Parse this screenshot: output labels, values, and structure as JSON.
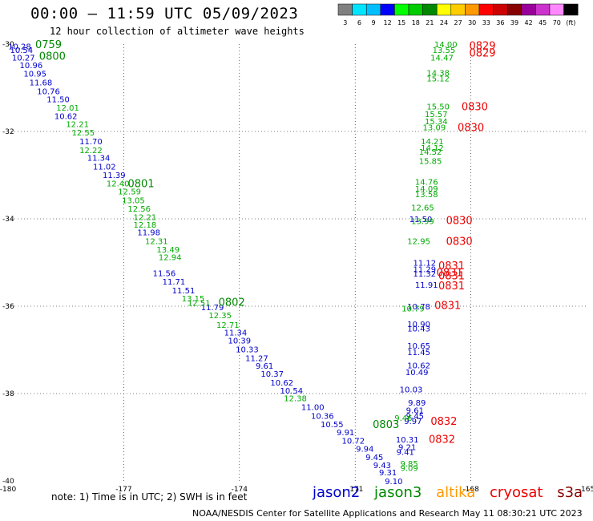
{
  "header": {
    "title": "00:00 – 11:59 UTC 05/09/2023",
    "subtitle": "12 hour collection of altimeter wave heights"
  },
  "color_scale": {
    "labels": [
      "3",
      "6",
      "9",
      "12",
      "15",
      "18",
      "21",
      "24",
      "27",
      "30",
      "33",
      "36",
      "39",
      "42",
      "45",
      "70",
      "(ft)"
    ],
    "colors": [
      "#808080",
      "#00e5ff",
      "#00bfff",
      "#0000ff",
      "#00ff00",
      "#00cc00",
      "#008800",
      "#ffff00",
      "#ffcc00",
      "#ff9900",
      "#ff0000",
      "#cc0000",
      "#880000",
      "#990099",
      "#cc33cc",
      "#ff88ff",
      "#000000"
    ]
  },
  "footer": {
    "note": "note: 1) Time is in UTC; 2) SWH is in feet",
    "credit": "NOAA/NESDIS Center for Satellite Applications and Research    May 11 08:30:21 UTC 2023"
  },
  "satellites": [
    {
      "name": "jason2",
      "color": "#0000cc"
    },
    {
      "name": "jason3",
      "color": "#008800"
    },
    {
      "name": "altika",
      "color": "#ff9900"
    },
    {
      "name": "cryosat",
      "color": "#ee0000"
    },
    {
      "name": "s3a",
      "color": "#880000"
    }
  ],
  "chart_data": {
    "type": "scatter",
    "title": "12 hour collection of altimeter wave heights",
    "xlim": [
      -180,
      -165
    ],
    "ylim": [
      -40,
      -30
    ],
    "x_ticks": [
      "-180",
      "-177",
      "-174",
      "-171",
      "-168",
      "-165"
    ],
    "y_ticks": [
      "-30",
      "-32",
      "-34",
      "-36",
      "-38",
      "-40"
    ],
    "grid": true,
    "series": [
      {
        "name": "jason2",
        "color": "#0000cc",
        "points": [
          {
            "x": -179.7,
            "y": -30.05,
            "label": "10.28"
          },
          {
            "x": -179.65,
            "y": -30.13,
            "label": "10.54"
          },
          {
            "x": -179.6,
            "y": -30.3,
            "label": "10.27"
          },
          {
            "x": -179.4,
            "y": -30.48,
            "label": "10.96"
          },
          {
            "x": -179.3,
            "y": -30.67,
            "label": "10.95"
          },
          {
            "x": -179.15,
            "y": -30.87,
            "label": "11.68"
          },
          {
            "x": -178.95,
            "y": -31.07,
            "label": "10.76"
          },
          {
            "x": -178.7,
            "y": -31.26,
            "label": "11.50"
          },
          {
            "x": -178.5,
            "y": -31.64,
            "label": "10.62"
          },
          {
            "x": -177.85,
            "y": -32.22,
            "label": "11.70"
          },
          {
            "x": -177.65,
            "y": -32.6,
            "label": "11.34"
          },
          {
            "x": -177.5,
            "y": -32.8,
            "label": "11.02"
          },
          {
            "x": -177.25,
            "y": -32.99,
            "label": "11.39"
          },
          {
            "x": -176.35,
            "y": -34.3,
            "label": "11.98"
          },
          {
            "x": -175.95,
            "y": -35.24,
            "label": "11.56"
          },
          {
            "x": -175.7,
            "y": -35.43,
            "label": "11.71"
          },
          {
            "x": -175.45,
            "y": -35.63,
            "label": "11.51"
          },
          {
            "x": -174.7,
            "y": -36.02,
            "label": "11.79"
          },
          {
            "x": -174.1,
            "y": -36.6,
            "label": "11.34"
          },
          {
            "x": -174.0,
            "y": -36.78,
            "label": "10.39"
          },
          {
            "x": -173.8,
            "y": -36.98,
            "label": "10.33"
          },
          {
            "x": -173.55,
            "y": -37.18,
            "label": "11.27"
          },
          {
            "x": -173.35,
            "y": -37.36,
            "label": "9.61"
          },
          {
            "x": -173.15,
            "y": -37.54,
            "label": "10.37"
          },
          {
            "x": -172.9,
            "y": -37.74,
            "label": "10.62"
          },
          {
            "x": -172.65,
            "y": -37.93,
            "label": "10.54"
          },
          {
            "x": -172.1,
            "y": -38.3,
            "label": "11.00"
          },
          {
            "x": -171.85,
            "y": -38.5,
            "label": "10.36"
          },
          {
            "x": -171.6,
            "y": -38.7,
            "label": "10.55"
          },
          {
            "x": -171.25,
            "y": -38.88,
            "label": "9.91"
          },
          {
            "x": -171.05,
            "y": -39.07,
            "label": "10.72"
          },
          {
            "x": -170.75,
            "y": -39.26,
            "label": "9.94"
          },
          {
            "x": -170.5,
            "y": -39.45,
            "label": "9.45"
          },
          {
            "x": -170.3,
            "y": -39.63,
            "label": "9.43"
          },
          {
            "x": -170.15,
            "y": -39.8,
            "label": "9.31"
          },
          {
            "x": -170.0,
            "y": -40.0,
            "label": "9.10"
          },
          {
            "x": -169.3,
            "y": -34.0,
            "label": "11.50"
          },
          {
            "x": -169.2,
            "y": -35.0,
            "label": "11.12"
          },
          {
            "x": -169.2,
            "y": -35.15,
            "label": "11.29"
          },
          {
            "x": -169.2,
            "y": -35.25,
            "label": "11.32"
          },
          {
            "x": -169.15,
            "y": -35.5,
            "label": "11.91"
          },
          {
            "x": -169.35,
            "y": -36.0,
            "label": "10.78"
          },
          {
            "x": -169.35,
            "y": -36.4,
            "label": "10.90"
          },
          {
            "x": -169.35,
            "y": -36.5,
            "label": "10.43"
          },
          {
            "x": -169.35,
            "y": -36.9,
            "label": "10.65"
          },
          {
            "x": -169.35,
            "y": -37.05,
            "label": "11.45"
          },
          {
            "x": -169.35,
            "y": -37.35,
            "label": "10.62"
          },
          {
            "x": -169.4,
            "y": -37.5,
            "label": "10.49"
          },
          {
            "x": -169.55,
            "y": -37.9,
            "label": "10.03"
          },
          {
            "x": -169.4,
            "y": -38.2,
            "label": "9.89"
          },
          {
            "x": -169.45,
            "y": -38.38,
            "label": "9.61"
          },
          {
            "x": -169.45,
            "y": -38.5,
            "label": "9.45"
          },
          {
            "x": -169.5,
            "y": -38.62,
            "label": "9.97"
          },
          {
            "x": -169.65,
            "y": -39.05,
            "label": "10.31"
          },
          {
            "x": -169.65,
            "y": -39.22,
            "label": "9.21"
          },
          {
            "x": -169.7,
            "y": -39.33,
            "label": "9.41"
          }
        ]
      },
      {
        "name": "jason3",
        "color": "#00aa00",
        "points": [
          {
            "x": -178.45,
            "y": -31.45,
            "label": "12.01"
          },
          {
            "x": -178.2,
            "y": -31.83,
            "label": "12.21"
          },
          {
            "x": -178.05,
            "y": -32.02,
            "label": "12.55"
          },
          {
            "x": -177.85,
            "y": -32.42,
            "label": "12.22"
          },
          {
            "x": -177.15,
            "y": -33.18,
            "label": "12.40"
          },
          {
            "x": -176.85,
            "y": -33.37,
            "label": "12.59"
          },
          {
            "x": -176.75,
            "y": -33.57,
            "label": "13.05"
          },
          {
            "x": -176.6,
            "y": -33.76,
            "label": "12.56"
          },
          {
            "x": -176.45,
            "y": -33.95,
            "label": "12.21"
          },
          {
            "x": -176.45,
            "y": -34.13,
            "label": "12.18"
          },
          {
            "x": -176.15,
            "y": -34.5,
            "label": "12.31"
          },
          {
            "x": -175.85,
            "y": -34.7,
            "label": "13.49"
          },
          {
            "x": -175.8,
            "y": -34.87,
            "label": "12.94"
          },
          {
            "x": -175.2,
            "y": -35.82,
            "label": "13.15"
          },
          {
            "x": -175.05,
            "y": -35.92,
            "label": "12.51"
          },
          {
            "x": -174.5,
            "y": -36.2,
            "label": "12.35"
          },
          {
            "x": -174.3,
            "y": -36.42,
            "label": "12.71"
          },
          {
            "x": -172.55,
            "y": -38.1,
            "label": "12.38"
          },
          {
            "x": -168.65,
            "y": -30.0,
            "label": "14.00"
          },
          {
            "x": -168.7,
            "y": -30.13,
            "label": "13.55"
          },
          {
            "x": -168.75,
            "y": -30.3,
            "label": "14.47"
          },
          {
            "x": -168.85,
            "y": -30.65,
            "label": "14.38"
          },
          {
            "x": -168.85,
            "y": -30.78,
            "label": "15.12"
          },
          {
            "x": -168.85,
            "y": -31.42,
            "label": "15.50"
          },
          {
            "x": -168.9,
            "y": -31.6,
            "label": "15.57"
          },
          {
            "x": -168.9,
            "y": -31.76,
            "label": "15.34"
          },
          {
            "x": -168.95,
            "y": -31.9,
            "label": "13.09"
          },
          {
            "x": -169.0,
            "y": -32.22,
            "label": "14.21"
          },
          {
            "x": -169.0,
            "y": -32.37,
            "label": "14.12"
          },
          {
            "x": -169.05,
            "y": -32.46,
            "label": "14.52"
          },
          {
            "x": -169.05,
            "y": -32.67,
            "label": "15.85"
          },
          {
            "x": -169.15,
            "y": -33.15,
            "label": "14.76"
          },
          {
            "x": -169.15,
            "y": -33.3,
            "label": "14.09"
          },
          {
            "x": -169.15,
            "y": -33.43,
            "label": "13.58"
          },
          {
            "x": -169.25,
            "y": -33.73,
            "label": "12.65"
          },
          {
            "x": -169.25,
            "y": -34.05,
            "label": "13.99"
          },
          {
            "x": -169.35,
            "y": -34.5,
            "label": "12.95"
          },
          {
            "x": -169.5,
            "y": -36.05,
            "label": "10.79"
          },
          {
            "x": -169.75,
            "y": -38.55,
            "label": "9.46"
          },
          {
            "x": -169.6,
            "y": -39.6,
            "label": "9.85"
          },
          {
            "x": -169.6,
            "y": -39.7,
            "label": "9.09"
          }
        ]
      },
      {
        "name": "cryosat",
        "color": "#ee0000",
        "points": []
      }
    ],
    "time_labels": [
      {
        "x": -178.95,
        "y": -30.0,
        "label": "0759",
        "color": "#008800"
      },
      {
        "x": -178.85,
        "y": -30.27,
        "label": "0800",
        "color": "#008800"
      },
      {
        "x": -176.55,
        "y": -33.18,
        "label": "0801",
        "color": "#008800"
      },
      {
        "x": -174.2,
        "y": -35.9,
        "label": "0802",
        "color": "#008800"
      },
      {
        "x": -170.2,
        "y": -38.7,
        "label": "0803",
        "color": "#008800"
      },
      {
        "x": -167.7,
        "y": -30.03,
        "label": "0829",
        "color": "#ee0000"
      },
      {
        "x": -167.7,
        "y": -30.19,
        "label": "0829",
        "color": "#ee0000"
      },
      {
        "x": -167.9,
        "y": -31.42,
        "label": "0830",
        "color": "#ee0000"
      },
      {
        "x": -168.0,
        "y": -31.9,
        "label": "0830",
        "color": "#ee0000"
      },
      {
        "x": -168.3,
        "y": -34.03,
        "label": "0830",
        "color": "#ee0000"
      },
      {
        "x": -168.3,
        "y": -34.5,
        "label": "0830",
        "color": "#ee0000"
      },
      {
        "x": -168.5,
        "y": -35.06,
        "label": "0831",
        "color": "#ee0000"
      },
      {
        "x": -168.55,
        "y": -35.22,
        "label": "0831",
        "color": "#ee0000"
      },
      {
        "x": -168.5,
        "y": -35.29,
        "label": "0831",
        "color": "#ee0000"
      },
      {
        "x": -168.5,
        "y": -35.52,
        "label": "0831",
        "color": "#ee0000"
      },
      {
        "x": -168.6,
        "y": -35.97,
        "label": "0831",
        "color": "#ee0000"
      },
      {
        "x": -168.7,
        "y": -38.62,
        "label": "0832",
        "color": "#ee0000"
      },
      {
        "x": -168.75,
        "y": -39.04,
        "label": "0832",
        "color": "#ee0000"
      }
    ]
  }
}
